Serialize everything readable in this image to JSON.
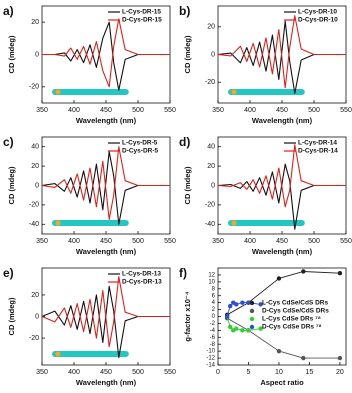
{
  "chart_data": [
    {
      "type": "line",
      "label": "a)",
      "x_label": "Wavelength (nm)",
      "y_label": "CD (mdeg)",
      "x": [
        350,
        370,
        385,
        395,
        405,
        415,
        425,
        435,
        445,
        455,
        462,
        470,
        480,
        500,
        550
      ],
      "series": [
        {
          "name": "L-Cys-DR-15",
          "color": "#111111",
          "values": [
            0,
            0,
            1,
            -4,
            3,
            -5,
            6,
            -8,
            10,
            20,
            -5,
            -22,
            -3,
            0,
            0
          ]
        },
        {
          "name": "D-Cys-DR-15",
          "color": "#e0201b",
          "values": [
            0,
            0,
            -1,
            4,
            -3,
            5,
            -6,
            8,
            -10,
            -20,
            5,
            22,
            3,
            0,
            0
          ]
        }
      ],
      "xlim": [
        350,
        550
      ],
      "ylim": [
        -30,
        30
      ],
      "xticks": [
        350,
        400,
        450,
        500,
        550
      ],
      "yticks": [
        -20,
        0,
        20
      ],
      "legend": "upper right"
    },
    {
      "type": "line",
      "label": "b)",
      "x_label": "Wavelength (nm)",
      "y_label": "CD (mdeg)",
      "x": [
        350,
        370,
        385,
        395,
        405,
        415,
        425,
        435,
        445,
        455,
        462,
        470,
        480,
        500,
        550
      ],
      "series": [
        {
          "name": "L-Cys-DR-10",
          "color": "#111111",
          "values": [
            0,
            1,
            -6,
            5,
            -8,
            9,
            -12,
            14,
            -18,
            24,
            -5,
            -28,
            -4,
            0,
            0
          ]
        },
        {
          "name": "D-Cys-DR-10",
          "color": "#e0201b",
          "values": [
            0,
            -1,
            6,
            -5,
            8,
            -9,
            12,
            -14,
            18,
            -24,
            5,
            28,
            4,
            0,
            0
          ]
        }
      ],
      "xlim": [
        350,
        550
      ],
      "ylim": [
        -35,
        35
      ],
      "xticks": [
        350,
        400,
        450,
        500,
        550
      ],
      "yticks": [
        -20,
        0,
        20
      ],
      "legend": "upper right"
    },
    {
      "type": "line",
      "label": "c)",
      "x_label": "Wavelength (nm)",
      "y_label": "CD (mdeg)",
      "x": [
        350,
        370,
        385,
        395,
        405,
        415,
        425,
        435,
        445,
        455,
        462,
        470,
        480,
        500,
        550
      ],
      "series": [
        {
          "name": "L-Cys-DR-5",
          "color": "#111111",
          "values": [
            0,
            2,
            -6,
            8,
            -12,
            15,
            -18,
            22,
            -25,
            35,
            10,
            -40,
            -5,
            0,
            0
          ]
        },
        {
          "name": "D-Cys-DR-5",
          "color": "#e0201b",
          "values": [
            0,
            -2,
            6,
            -8,
            12,
            -15,
            18,
            -22,
            25,
            -35,
            -10,
            40,
            5,
            0,
            0
          ]
        }
      ],
      "xlim": [
        350,
        550
      ],
      "ylim": [
        -50,
        50
      ],
      "xticks": [
        350,
        400,
        450,
        500,
        550
      ],
      "yticks": [
        -40,
        -20,
        0,
        20,
        40
      ],
      "legend": "upper right"
    },
    {
      "type": "line",
      "label": "d)",
      "x_label": "Wavelength (nm)",
      "y_label": "CD (mdeg)",
      "x": [
        350,
        370,
        385,
        395,
        405,
        415,
        425,
        435,
        445,
        455,
        462,
        470,
        480,
        500,
        550
      ],
      "series": [
        {
          "name": "L-Cys-DR-14",
          "color": "#111111",
          "values": [
            0,
            1,
            -3,
            4,
            -6,
            8,
            -10,
            14,
            -18,
            22,
            5,
            -45,
            -5,
            0,
            0
          ]
        },
        {
          "name": "D-Cys-DR-14",
          "color": "#e0201b",
          "values": [
            0,
            -1,
            3,
            -4,
            6,
            -8,
            10,
            -14,
            18,
            -22,
            -5,
            42,
            5,
            0,
            0
          ]
        }
      ],
      "xlim": [
        350,
        550
      ],
      "ylim": [
        -50,
        50
      ],
      "xticks": [
        350,
        400,
        450,
        500,
        550
      ],
      "yticks": [
        -40,
        -20,
        0,
        20,
        40
      ],
      "legend": "upper right"
    },
    {
      "type": "line",
      "label": "e)",
      "x_label": "Wavelength (nm)",
      "y_label": "CD (mdeg)",
      "x": [
        350,
        370,
        385,
        395,
        405,
        415,
        425,
        435,
        445,
        455,
        462,
        470,
        480,
        500,
        550
      ],
      "series": [
        {
          "name": "L-Cys-DR-13",
          "color": "#111111",
          "values": [
            0,
            5,
            -8,
            10,
            -12,
            14,
            -16,
            20,
            -24,
            28,
            5,
            -38,
            -4,
            0,
            0
          ]
        },
        {
          "name": "D-Cys-DR-13",
          "color": "#e0201b",
          "values": [
            0,
            -5,
            8,
            -10,
            12,
            -14,
            16,
            -20,
            24,
            -28,
            -5,
            37,
            4,
            0,
            0
          ]
        }
      ],
      "xlim": [
        350,
        550
      ],
      "ylim": [
        -45,
        45
      ],
      "xticks": [
        350,
        400,
        450,
        500,
        550
      ],
      "yticks": [
        -20,
        0,
        20
      ],
      "legend": "upper right"
    },
    {
      "type": "scatter",
      "label": "f)",
      "x_label": "Aspect ratio",
      "y_label": "g-factor x10⁻⁴",
      "series": [
        {
          "name": "L-Cys CdSe/CdS DRs",
          "color": "#222222",
          "x": [
            1.5,
            5,
            10,
            14,
            20
          ],
          "values": [
            0.5,
            4,
            11,
            13,
            12.5
          ]
        },
        {
          "name": "D-Cys CdSe/CdS DRs",
          "color": "#555555",
          "x": [
            1.5,
            5,
            10,
            14,
            20
          ],
          "values": [
            -0.5,
            -4,
            -10,
            -12,
            -12
          ]
        },
        {
          "name": "L-Cys CdSe DRs ⁷⁸",
          "color": "#2fd12f",
          "x": [
            1.5,
            2,
            2.5,
            3,
            4,
            5,
            7
          ],
          "values": [
            0,
            -3,
            -4,
            -3.5,
            -4,
            -4,
            -3.5
          ]
        },
        {
          "name": "D-Cys CdSe DRs ⁷⁸",
          "color": "#2a4fd6",
          "x": [
            1.5,
            2,
            2.5,
            3,
            4,
            5,
            7
          ],
          "values": [
            0,
            3,
            4,
            3.5,
            4,
            4,
            3.5
          ]
        }
      ],
      "xlim": [
        0,
        21
      ],
      "ylim": [
        -14,
        14
      ],
      "xticks": [
        0,
        5,
        10,
        15,
        20
      ],
      "yticks": [
        -14,
        -12,
        -10,
        -8,
        -6,
        -4,
        -2,
        0,
        2,
        4,
        6,
        8,
        10,
        12
      ],
      "legend": "lower right"
    }
  ]
}
